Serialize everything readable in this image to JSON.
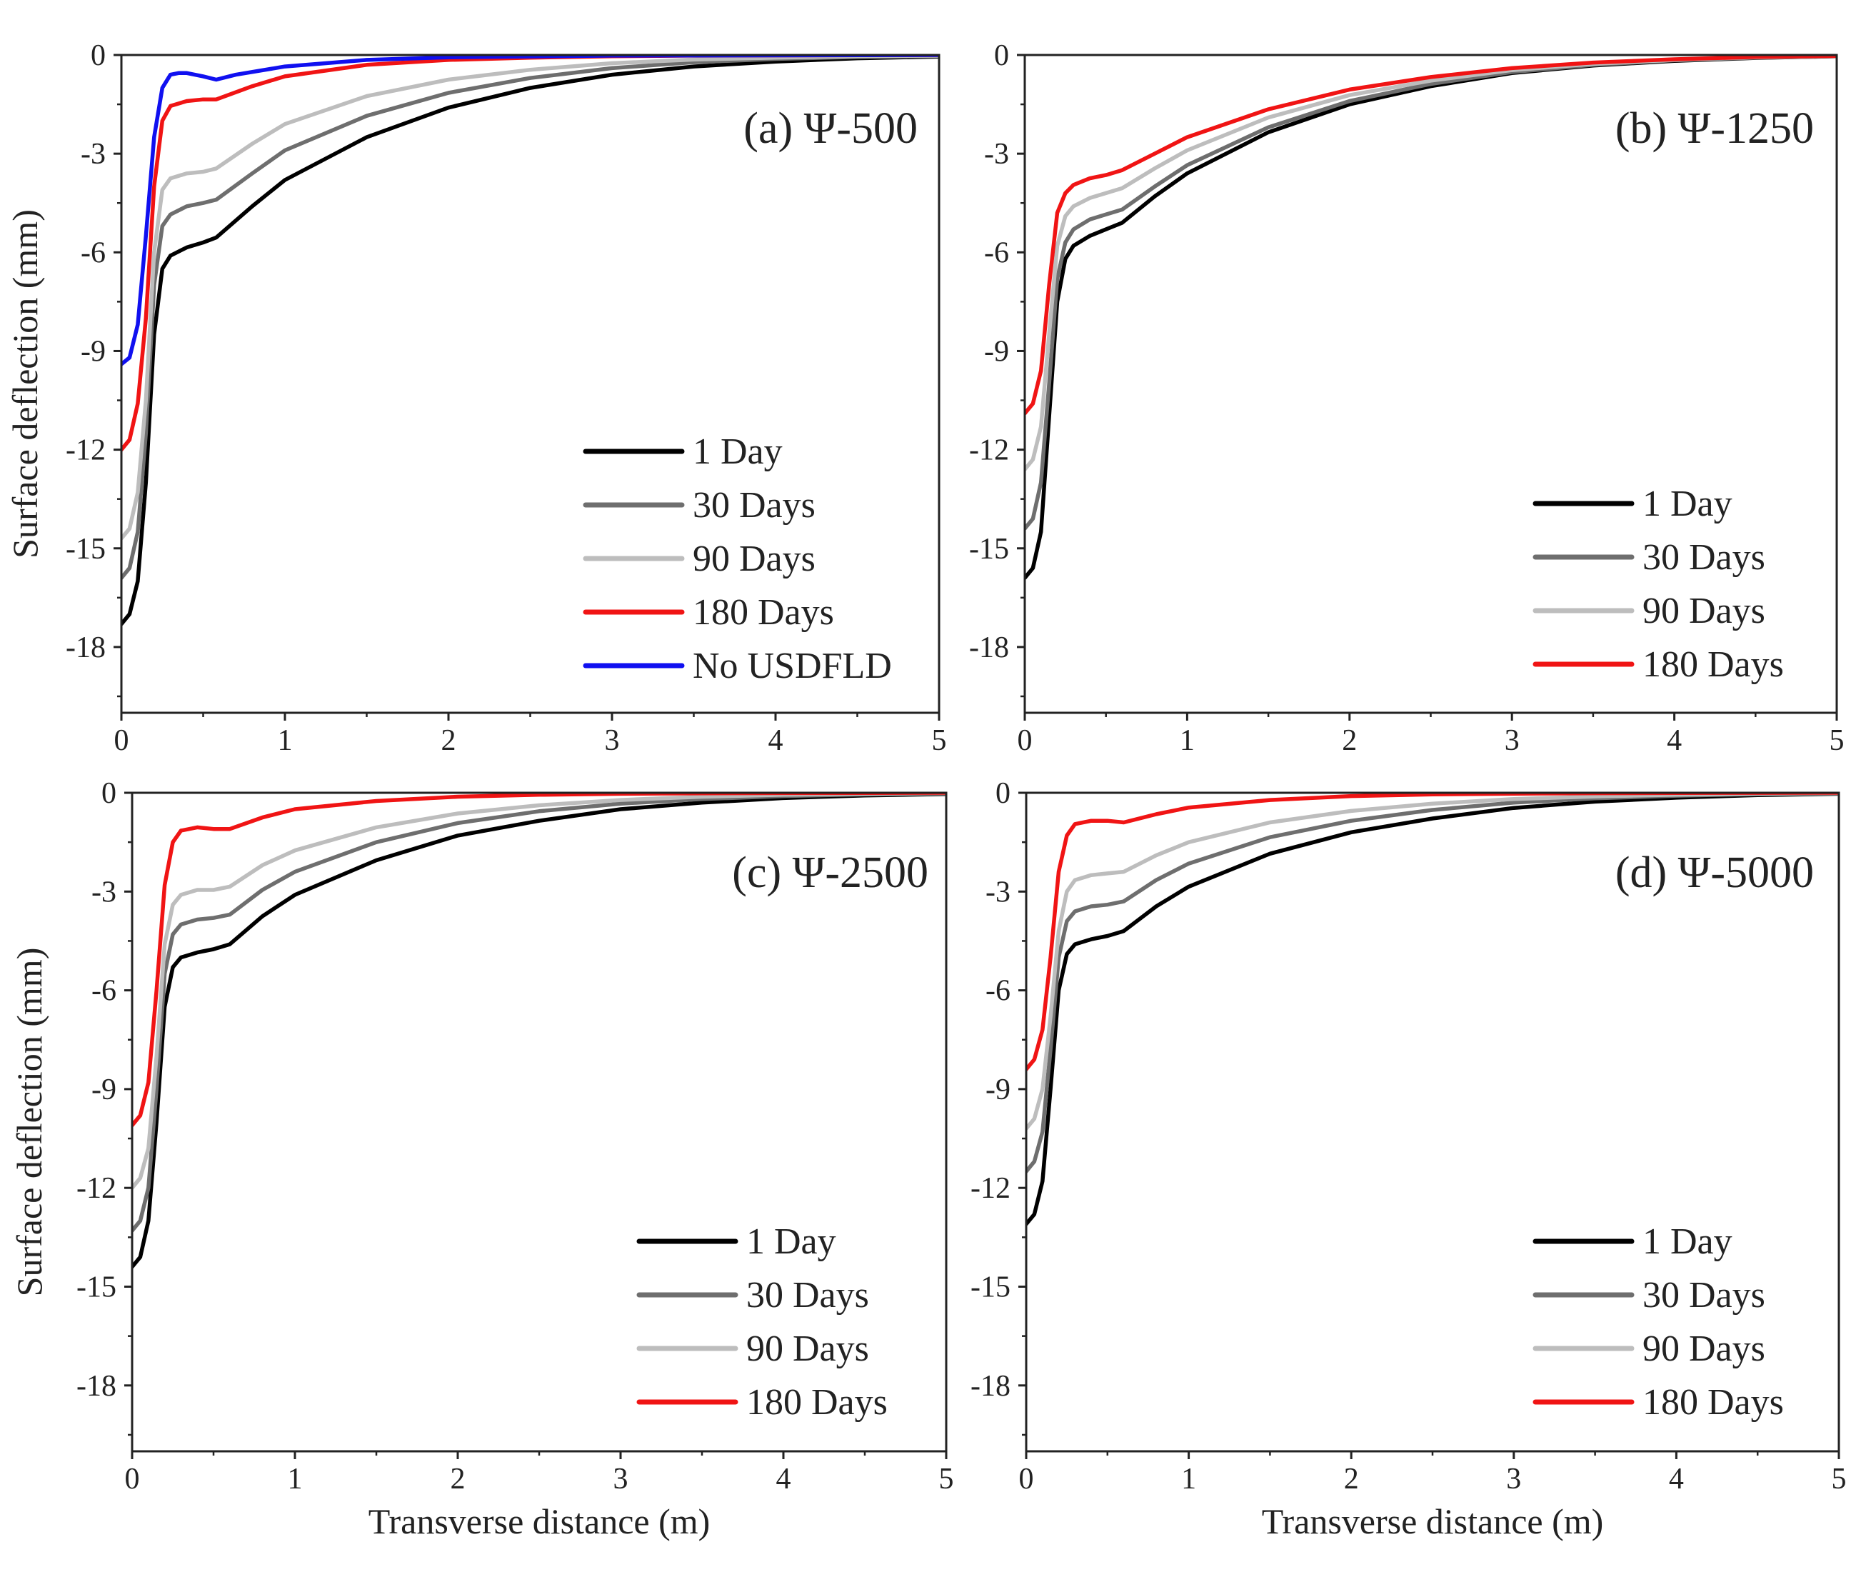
{
  "x_label": "Transverse distance (m)",
  "y_label": "Surface deflection (mm)",
  "colors": {
    "1 Day": "#000000",
    "30  Days": "#6e6e6e",
    "90  Days": "#bdbdbd",
    "180  Days": "#f01414",
    "No USDFLD": "#1010f0",
    "axis": "#222222"
  },
  "chart_data": [
    {
      "type": "line",
      "panel": "a",
      "title": "(a) Ψ-500",
      "xlabel": "",
      "ylabel": "Surface deflection (mm)",
      "xlim": [
        0,
        5
      ],
      "ylim": [
        -20,
        0
      ],
      "xticks": [
        "0",
        "1",
        "2",
        "3",
        "4",
        "5"
      ],
      "yticks": [
        "0",
        "-3",
        "-6",
        "-9",
        "-12",
        "-15",
        "-18"
      ],
      "legend": [
        "1 Day",
        "30  Days",
        "90  Days",
        "180  Days",
        "No USDFLD"
      ],
      "legend_position": "bottom-right",
      "series": [
        {
          "name": "1 Day",
          "x": [
            0,
            0.05,
            0.1,
            0.15,
            0.2,
            0.25,
            0.3,
            0.4,
            0.5,
            0.58,
            0.8,
            1.0,
            1.5,
            2.0,
            2.5,
            3.0,
            3.5,
            4.0,
            4.5,
            5.0
          ],
          "y": [
            -17.3,
            -17.0,
            -16.0,
            -13.0,
            -8.5,
            -6.5,
            -6.1,
            -5.85,
            -5.7,
            -5.55,
            -4.6,
            -3.8,
            -2.5,
            -1.6,
            -1.0,
            -0.6,
            -0.35,
            -0.2,
            -0.1,
            -0.05
          ]
        },
        {
          "name": "30  Days",
          "x": [
            0,
            0.05,
            0.1,
            0.15,
            0.2,
            0.25,
            0.3,
            0.4,
            0.5,
            0.58,
            0.8,
            1.0,
            1.5,
            2.0,
            2.5,
            3.0,
            3.5,
            4.0,
            4.5,
            5.0
          ],
          "y": [
            -15.9,
            -15.6,
            -14.5,
            -11.5,
            -7.0,
            -5.2,
            -4.85,
            -4.6,
            -4.5,
            -4.4,
            -3.6,
            -2.9,
            -1.85,
            -1.15,
            -0.7,
            -0.4,
            -0.22,
            -0.12,
            -0.06,
            -0.03
          ]
        },
        {
          "name": "90  Days",
          "x": [
            0,
            0.05,
            0.1,
            0.15,
            0.2,
            0.25,
            0.3,
            0.4,
            0.5,
            0.58,
            0.8,
            1.0,
            1.5,
            2.0,
            2.5,
            3.0,
            3.5,
            4.0,
            4.5,
            5.0
          ],
          "y": [
            -14.7,
            -14.4,
            -13.3,
            -10.5,
            -6.0,
            -4.1,
            -3.75,
            -3.6,
            -3.55,
            -3.45,
            -2.7,
            -2.1,
            -1.25,
            -0.75,
            -0.45,
            -0.25,
            -0.14,
            -0.08,
            -0.04,
            -0.02
          ]
        },
        {
          "name": "180  Days",
          "x": [
            0,
            0.05,
            0.1,
            0.15,
            0.2,
            0.25,
            0.3,
            0.4,
            0.5,
            0.58,
            0.8,
            1.0,
            1.5,
            2.0,
            2.5,
            3.0,
            3.5,
            4.0,
            4.5,
            5.0
          ],
          "y": [
            -12.0,
            -11.7,
            -10.6,
            -8.0,
            -4.0,
            -2.0,
            -1.55,
            -1.4,
            -1.35,
            -1.35,
            -0.95,
            -0.65,
            -0.3,
            -0.15,
            -0.08,
            -0.04,
            -0.02,
            -0.01,
            -0.005,
            0
          ]
        },
        {
          "name": "No USDFLD",
          "x": [
            0,
            0.05,
            0.1,
            0.15,
            0.2,
            0.25,
            0.3,
            0.35,
            0.4,
            0.5,
            0.58,
            0.7,
            1.0,
            1.5,
            2.0,
            3.0,
            4.0,
            5.0
          ],
          "y": [
            -9.4,
            -9.2,
            -8.2,
            -5.5,
            -2.5,
            -1.0,
            -0.6,
            -0.55,
            -0.55,
            -0.65,
            -0.75,
            -0.6,
            -0.35,
            -0.15,
            -0.07,
            -0.02,
            -0.01,
            0
          ]
        }
      ]
    },
    {
      "type": "line",
      "panel": "b",
      "title": "(b) Ψ-1250",
      "xlabel": "",
      "ylabel": "",
      "xlim": [
        0,
        5
      ],
      "ylim": [
        -20,
        0
      ],
      "xticks": [
        "0",
        "1",
        "2",
        "3",
        "4",
        "5"
      ],
      "yticks": [
        "0",
        "-3",
        "-6",
        "-9",
        "-12",
        "-15",
        "-18"
      ],
      "legend": [
        "1 Day",
        "30  Days",
        "90  Days",
        "180  Days"
      ],
      "legend_position": "bottom-right",
      "series": [
        {
          "name": "1 Day",
          "x": [
            0,
            0.05,
            0.1,
            0.15,
            0.2,
            0.25,
            0.3,
            0.4,
            0.5,
            0.6,
            0.8,
            1.0,
            1.5,
            2.0,
            2.5,
            3.0,
            3.5,
            4.0,
            4.5,
            5.0
          ],
          "y": [
            -15.9,
            -15.6,
            -14.5,
            -11.0,
            -7.5,
            -6.2,
            -5.8,
            -5.5,
            -5.3,
            -5.1,
            -4.3,
            -3.6,
            -2.35,
            -1.5,
            -0.95,
            -0.55,
            -0.32,
            -0.18,
            -0.09,
            -0.04
          ]
        },
        {
          "name": "30  Days",
          "x": [
            0,
            0.05,
            0.1,
            0.15,
            0.2,
            0.25,
            0.3,
            0.4,
            0.5,
            0.6,
            0.8,
            1.0,
            1.5,
            2.0,
            2.5,
            3.0,
            3.5,
            4.0,
            4.5,
            5.0
          ],
          "y": [
            -14.4,
            -14.1,
            -13.0,
            -10.0,
            -6.8,
            -5.7,
            -5.3,
            -5.0,
            -4.85,
            -4.7,
            -4.0,
            -3.35,
            -2.2,
            -1.4,
            -0.88,
            -0.52,
            -0.3,
            -0.16,
            -0.08,
            -0.04
          ]
        },
        {
          "name": "90  Days",
          "x": [
            0,
            0.05,
            0.1,
            0.15,
            0.2,
            0.25,
            0.3,
            0.4,
            0.5,
            0.6,
            0.8,
            1.0,
            1.5,
            2.0,
            2.5,
            3.0,
            3.5,
            4.0,
            4.5,
            5.0
          ],
          "y": [
            -12.6,
            -12.3,
            -11.3,
            -8.5,
            -5.8,
            -4.9,
            -4.6,
            -4.35,
            -4.2,
            -4.05,
            -3.45,
            -2.9,
            -1.9,
            -1.22,
            -0.78,
            -0.46,
            -0.27,
            -0.15,
            -0.07,
            -0.03
          ]
        },
        {
          "name": "180  Days",
          "x": [
            0,
            0.05,
            0.1,
            0.15,
            0.2,
            0.25,
            0.3,
            0.4,
            0.5,
            0.6,
            0.8,
            1.0,
            1.5,
            2.0,
            2.5,
            3.0,
            3.5,
            4.0,
            4.5,
            5.0
          ],
          "y": [
            -10.9,
            -10.6,
            -9.6,
            -7.0,
            -4.8,
            -4.2,
            -3.95,
            -3.75,
            -3.65,
            -3.5,
            -3.0,
            -2.5,
            -1.65,
            -1.05,
            -0.67,
            -0.4,
            -0.23,
            -0.13,
            -0.06,
            -0.03
          ]
        }
      ]
    },
    {
      "type": "line",
      "panel": "c",
      "title": "(c) Ψ-2500",
      "xlabel": "Transverse distance (m)",
      "ylabel": "Surface deflection (mm)",
      "xlim": [
        0,
        5
      ],
      "ylim": [
        -20,
        0
      ],
      "xticks": [
        "0",
        "1",
        "2",
        "3",
        "4",
        "5"
      ],
      "yticks": [
        "0",
        "-3",
        "-6",
        "-9",
        "-12",
        "-15",
        "-18"
      ],
      "legend": [
        "1 Day",
        "30  Days",
        "90  Days",
        "180  Days"
      ],
      "legend_position": "bottom-right",
      "series": [
        {
          "name": "1 Day",
          "x": [
            0,
            0.05,
            0.1,
            0.15,
            0.2,
            0.25,
            0.3,
            0.4,
            0.5,
            0.6,
            0.8,
            1.0,
            1.5,
            2.0,
            2.5,
            3.0,
            3.5,
            4.0,
            4.5,
            5.0
          ],
          "y": [
            -14.4,
            -14.1,
            -13.0,
            -10.0,
            -6.5,
            -5.3,
            -5.0,
            -4.85,
            -4.75,
            -4.6,
            -3.75,
            -3.1,
            -2.05,
            -1.3,
            -0.85,
            -0.5,
            -0.3,
            -0.16,
            -0.08,
            -0.04
          ]
        },
        {
          "name": "30  Days",
          "x": [
            0,
            0.05,
            0.1,
            0.15,
            0.2,
            0.25,
            0.3,
            0.4,
            0.5,
            0.6,
            0.8,
            1.0,
            1.5,
            2.0,
            2.5,
            3.0,
            3.5,
            4.0,
            4.5,
            5.0
          ],
          "y": [
            -13.3,
            -13.0,
            -12.0,
            -9.0,
            -5.5,
            -4.3,
            -4.0,
            -3.85,
            -3.8,
            -3.7,
            -2.95,
            -2.4,
            -1.5,
            -0.92,
            -0.56,
            -0.33,
            -0.19,
            -0.1,
            -0.05,
            -0.02
          ]
        },
        {
          "name": "90  Days",
          "x": [
            0,
            0.05,
            0.1,
            0.15,
            0.2,
            0.25,
            0.3,
            0.4,
            0.5,
            0.6,
            0.8,
            1.0,
            1.5,
            2.0,
            2.5,
            3.0,
            3.5,
            4.0,
            4.5,
            5.0
          ],
          "y": [
            -12.0,
            -11.7,
            -10.8,
            -8.0,
            -4.6,
            -3.4,
            -3.1,
            -2.95,
            -2.95,
            -2.85,
            -2.2,
            -1.75,
            -1.05,
            -0.63,
            -0.38,
            -0.22,
            -0.12,
            -0.06,
            -0.03,
            -0.01
          ]
        },
        {
          "name": "180  Days",
          "x": [
            0,
            0.05,
            0.1,
            0.15,
            0.2,
            0.25,
            0.3,
            0.4,
            0.5,
            0.6,
            0.8,
            1.0,
            1.5,
            2.0,
            2.5,
            3.0,
            3.5,
            4.0,
            4.5,
            5.0
          ],
          "y": [
            -10.1,
            -9.8,
            -8.8,
            -6.0,
            -2.8,
            -1.5,
            -1.15,
            -1.05,
            -1.1,
            -1.1,
            -0.75,
            -0.5,
            -0.25,
            -0.12,
            -0.06,
            -0.03,
            -0.015,
            -0.008,
            -0.004,
            0
          ]
        }
      ]
    },
    {
      "type": "line",
      "panel": "d",
      "title": "(d) Ψ-5000",
      "xlabel": "Transverse distance (m)",
      "ylabel": "",
      "xlim": [
        0,
        5
      ],
      "ylim": [
        -20,
        0
      ],
      "xticks": [
        "0",
        "1",
        "2",
        "3",
        "4",
        "5"
      ],
      "yticks": [
        "0",
        "-3",
        "-6",
        "-9",
        "-12",
        "-15",
        "-18"
      ],
      "legend": [
        "1 Day",
        "30  Days",
        "90  Days",
        "180  Days"
      ],
      "legend_position": "bottom-right",
      "series": [
        {
          "name": "1 Day",
          "x": [
            0,
            0.05,
            0.1,
            0.15,
            0.2,
            0.25,
            0.3,
            0.4,
            0.5,
            0.6,
            0.8,
            1.0,
            1.5,
            2.0,
            2.5,
            3.0,
            3.5,
            4.0,
            4.5,
            5.0
          ],
          "y": [
            -13.1,
            -12.8,
            -11.8,
            -9.0,
            -6.0,
            -4.9,
            -4.6,
            -4.45,
            -4.35,
            -4.2,
            -3.45,
            -2.85,
            -1.85,
            -1.2,
            -0.78,
            -0.46,
            -0.27,
            -0.15,
            -0.07,
            -0.03
          ]
        },
        {
          "name": "30  Days",
          "x": [
            0,
            0.05,
            0.1,
            0.15,
            0.2,
            0.25,
            0.3,
            0.4,
            0.5,
            0.6,
            0.8,
            1.0,
            1.5,
            2.0,
            2.5,
            3.0,
            3.5,
            4.0,
            4.5,
            5.0
          ],
          "y": [
            -11.5,
            -11.2,
            -10.3,
            -7.8,
            -5.0,
            -3.9,
            -3.6,
            -3.45,
            -3.4,
            -3.3,
            -2.65,
            -2.15,
            -1.35,
            -0.85,
            -0.52,
            -0.3,
            -0.17,
            -0.09,
            -0.04,
            -0.02
          ]
        },
        {
          "name": "90  Days",
          "x": [
            0,
            0.05,
            0.1,
            0.15,
            0.2,
            0.25,
            0.3,
            0.4,
            0.5,
            0.6,
            0.8,
            1.0,
            1.5,
            2.0,
            2.5,
            3.0,
            3.5,
            4.0,
            4.5,
            5.0
          ],
          "y": [
            -10.2,
            -9.9,
            -9.0,
            -6.8,
            -4.2,
            -3.0,
            -2.65,
            -2.5,
            -2.45,
            -2.4,
            -1.9,
            -1.5,
            -0.9,
            -0.55,
            -0.33,
            -0.19,
            -0.11,
            -0.06,
            -0.03,
            -0.01
          ]
        },
        {
          "name": "180  Days",
          "x": [
            0,
            0.05,
            0.1,
            0.15,
            0.2,
            0.25,
            0.3,
            0.4,
            0.5,
            0.6,
            0.8,
            1.0,
            1.5,
            2.0,
            2.5,
            3.0,
            3.5,
            4.0,
            4.5,
            5.0
          ],
          "y": [
            -8.4,
            -8.1,
            -7.2,
            -5.0,
            -2.4,
            -1.3,
            -0.95,
            -0.85,
            -0.85,
            -0.9,
            -0.65,
            -0.45,
            -0.22,
            -0.1,
            -0.05,
            -0.025,
            -0.012,
            -0.006,
            -0.003,
            0
          ]
        }
      ]
    }
  ]
}
